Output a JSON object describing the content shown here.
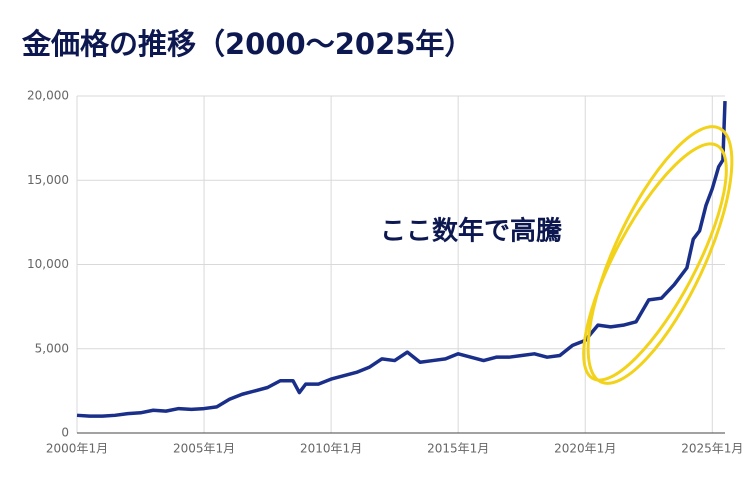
{
  "chart_data": {
    "type": "line",
    "title": "金価格の推移（2000〜2025年）",
    "annotation": "ここ数年で高騰",
    "x": [
      "2000-01",
      "2000-07",
      "2001-01",
      "2001-07",
      "2002-01",
      "2002-07",
      "2003-01",
      "2003-07",
      "2004-01",
      "2004-07",
      "2005-01",
      "2005-07",
      "2006-01",
      "2006-07",
      "2007-01",
      "2007-07",
      "2008-01",
      "2008-07",
      "2008-10",
      "2009-01",
      "2009-07",
      "2010-01",
      "2010-07",
      "2011-01",
      "2011-07",
      "2012-01",
      "2012-07",
      "2013-01",
      "2013-07",
      "2014-01",
      "2014-07",
      "2015-01",
      "2015-07",
      "2016-01",
      "2016-07",
      "2017-01",
      "2017-07",
      "2018-01",
      "2018-07",
      "2019-01",
      "2019-07",
      "2020-01",
      "2020-07",
      "2021-01",
      "2021-07",
      "2022-01",
      "2022-07",
      "2023-01",
      "2023-07",
      "2024-01",
      "2024-04",
      "2024-07",
      "2024-10",
      "2025-01",
      "2025-04",
      "2025-06",
      "2025-07"
    ],
    "series": [
      {
        "color": "#1a2f8a",
        "values": [
          1050,
          1000,
          1000,
          1050,
          1150,
          1200,
          1350,
          1300,
          1450,
          1400,
          1450,
          1550,
          2000,
          2300,
          2500,
          2700,
          3100,
          3100,
          2400,
          2900,
          2900,
          3200,
          3400,
          3600,
          3900,
          4400,
          4300,
          4800,
          4200,
          4300,
          4400,
          4700,
          4500,
          4300,
          4500,
          4500,
          4600,
          4700,
          4500,
          4600,
          5200,
          5500,
          6400,
          6300,
          6400,
          6600,
          7900,
          8000,
          8800,
          9800,
          11500,
          12000,
          13500,
          14500,
          15800,
          16200,
          19700
        ]
      }
    ],
    "xlim": [
      "2000-01",
      "2025-07"
    ],
    "xticks": [
      {
        "value": "2000-01",
        "label": "2000年1月"
      },
      {
        "value": "2005-01",
        "label": "2005年1月"
      },
      {
        "value": "2010-01",
        "label": "2010年1月"
      },
      {
        "value": "2015-01",
        "label": "2015年1月"
      },
      {
        "value": "2020-01",
        "label": "2020年1月"
      },
      {
        "value": "2025-01",
        "label": "2025年1月"
      }
    ],
    "ylim": [
      0,
      20000
    ],
    "yticks": [
      0,
      {
        "value": 5000,
        "label": "5,000"
      },
      {
        "value": 10000,
        "label": "10,000"
      },
      {
        "value": 15000,
        "label": "15,000"
      },
      {
        "value": 20000,
        "label": "20,000"
      }
    ],
    "grid": true
  }
}
